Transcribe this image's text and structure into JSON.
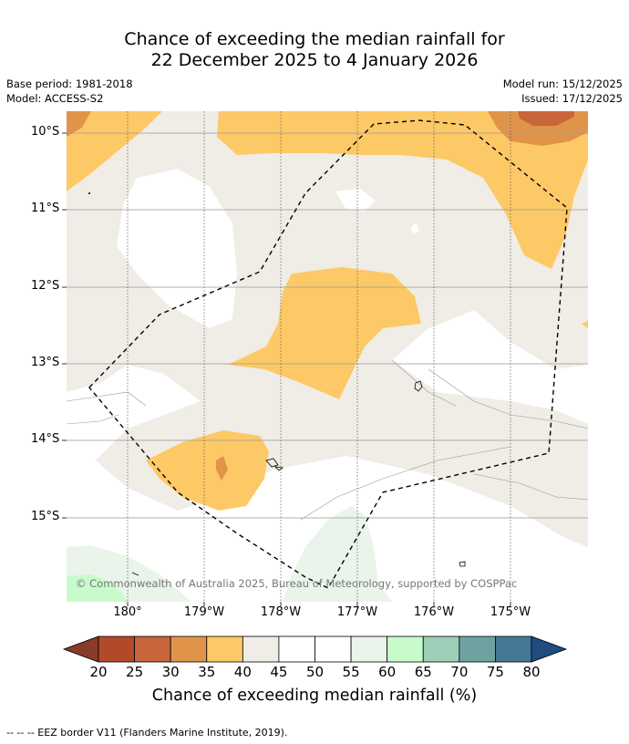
{
  "title": {
    "line1": "Chance of exceeding the median rainfall for",
    "line2": "22 December 2025 to 4 January 2026"
  },
  "meta": {
    "base_period": "Base period: 1981-2018",
    "model": "Model: ACCESS-S2",
    "model_run": "Model run: 15/12/2025",
    "issued": "Issued: 17/12/2025"
  },
  "map": {
    "lat_labels": [
      "10°S",
      "11°S",
      "12°S",
      "13°S",
      "14°S",
      "15°S"
    ],
    "lon_labels": [
      "180°",
      "179°W",
      "178°W",
      "177°W",
      "176°W",
      "175°W"
    ],
    "copyright": "© Commonwealth of Australia 2025, Bureau of Meteorology, supported by COSPPac"
  },
  "colorbar": {
    "ticks": [
      "20",
      "25",
      "30",
      "35",
      "40",
      "45",
      "50",
      "55",
      "60",
      "65",
      "70",
      "75",
      "80"
    ],
    "colors": [
      "#b24a2a",
      "#c8653a",
      "#e0944a",
      "#fdc966",
      "#f0ece6",
      "#ffffff",
      "#ffffff",
      "#eaf4ea",
      "#c8fbcc",
      "#9ccfb8",
      "#6da2a0",
      "#457897"
    ],
    "under_color": "#8a3a28",
    "over_color": "#1f4d80",
    "label": "Chance of exceeding median rainfall (%)"
  },
  "footnote": "--  --  -- EEZ border V11 (Flanders Marine Institute, 2019)."
}
